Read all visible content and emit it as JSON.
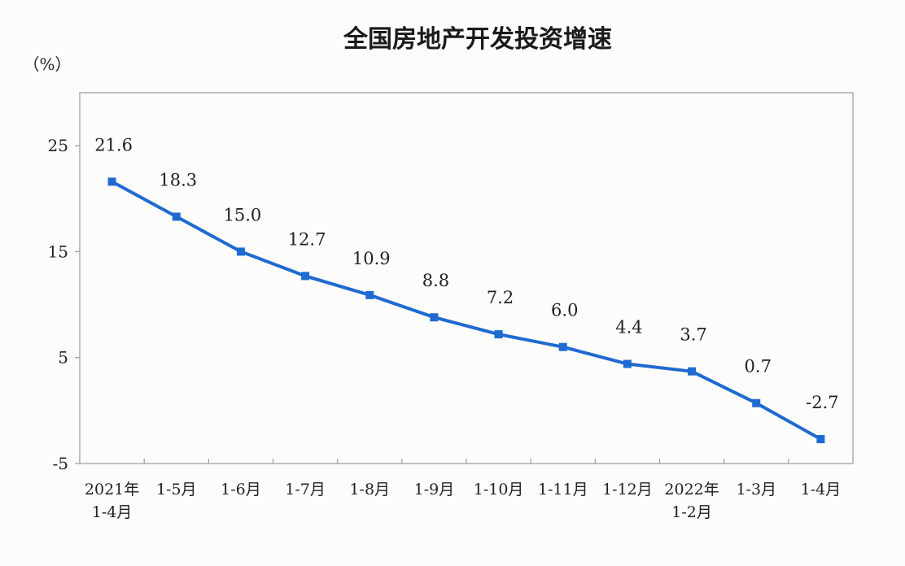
{
  "chart_data": {
    "type": "line",
    "title": "全国房地产开发投资增速",
    "unit_label": "（%）",
    "categories": [
      [
        "2021年",
        "1-4月"
      ],
      [
        "1-5月"
      ],
      [
        "1-6月"
      ],
      [
        "1-7月"
      ],
      [
        "1-8月"
      ],
      [
        "1-9月"
      ],
      [
        "1-10月"
      ],
      [
        "1-11月"
      ],
      [
        "1-12月"
      ],
      [
        "2022年",
        "1-2月"
      ],
      [
        "1-3月"
      ],
      [
        "1-4月"
      ]
    ],
    "values": [
      21.6,
      18.3,
      15.0,
      12.7,
      10.9,
      8.8,
      7.2,
      6.0,
      4.4,
      3.7,
      0.7,
      -2.7
    ],
    "value_labels": [
      "21.6",
      "18.3",
      "15.0",
      "12.7",
      "10.9",
      "8.8",
      "7.2",
      "6.0",
      "4.4",
      "3.7",
      "0.7",
      "-2.7"
    ],
    "ylim": [
      -5,
      30
    ],
    "yticks": [
      25,
      15,
      5,
      -5
    ],
    "ytick_labels": [
      "25",
      "15",
      "5",
      "-5"
    ],
    "line_color": "#1f6ad0",
    "marker": "square",
    "grid": false,
    "legend": "none"
  }
}
